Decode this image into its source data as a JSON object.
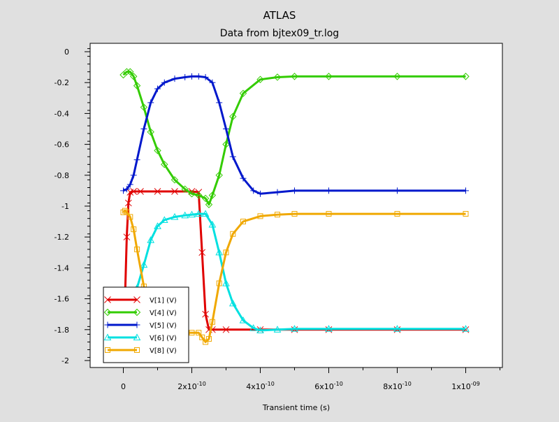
{
  "chart_data": {
    "type": "line",
    "title": "ATLAS",
    "subtitle": "Data from bjtex09_tr.log",
    "xlabel": "Transient time (s)",
    "ylabel": "",
    "xlim": [
      -2.4e-10,
      1.1e-09
    ],
    "ylim": [
      -2.05,
      0.03
    ],
    "grid": false,
    "legend_position": "bottom-left",
    "x_ticks": [
      {
        "value": 0,
        "base": "0",
        "exp": ""
      },
      {
        "value": 2e-10,
        "base": "2x10",
        "exp": "-10"
      },
      {
        "value": 4e-10,
        "base": "4x10",
        "exp": "-10"
      },
      {
        "value": 6e-10,
        "base": "6x10",
        "exp": "-10"
      },
      {
        "value": 8e-10,
        "base": "8x10",
        "exp": "-10"
      },
      {
        "value": 1e-09,
        "base": "1x10",
        "exp": "-09"
      }
    ],
    "y_ticks": [
      {
        "value": 0,
        "label": "0"
      },
      {
        "value": -0.2,
        "label": "-0.2"
      },
      {
        "value": -0.4,
        "label": "-0.4"
      },
      {
        "value": -0.6,
        "label": "-0.6"
      },
      {
        "value": -0.8,
        "label": "-0.8"
      },
      {
        "value": -1,
        "label": "-1"
      },
      {
        "value": -1.2,
        "label": "-1.2"
      },
      {
        "value": -1.4,
        "label": "-1.4"
      },
      {
        "value": -1.6,
        "label": "-1.6"
      },
      {
        "value": -1.8,
        "label": "-1.8"
      },
      {
        "value": -2,
        "label": "-2"
      }
    ],
    "series": [
      {
        "name": "V[1] (V)",
        "color": "#e00000",
        "marker": "x",
        "x": [
          0,
          5e-12,
          1e-11,
          1.5e-11,
          2e-11,
          3e-11,
          5e-11,
          1e-10,
          1.5e-10,
          2e-10,
          2.2e-10,
          2.3e-10,
          2.4e-10,
          2.5e-10,
          2.6e-10,
          3e-10,
          4e-10,
          5e-10,
          6e-10,
          8e-10,
          1e-09
        ],
        "y": [
          -1.82,
          -1.6,
          -1.2,
          -0.98,
          -0.91,
          -0.905,
          -0.905,
          -0.905,
          -0.905,
          -0.905,
          -0.91,
          -1.3,
          -1.7,
          -1.8,
          -1.8,
          -1.8,
          -1.8,
          -1.8,
          -1.8,
          -1.8,
          -1.8
        ]
      },
      {
        "name": "V[4] (V)",
        "color": "#33cc00",
        "marker": "diamond",
        "x": [
          0,
          1e-11,
          2e-11,
          3e-11,
          4e-11,
          6e-11,
          8e-11,
          1e-10,
          1.2e-10,
          1.5e-10,
          1.8e-10,
          2e-10,
          2.2e-10,
          2.4e-10,
          2.5e-10,
          2.6e-10,
          2.8e-10,
          3e-10,
          3.2e-10,
          3.5e-10,
          4e-10,
          4.5e-10,
          5e-10,
          6e-10,
          8e-10,
          1e-09
        ],
        "y": [
          -0.15,
          -0.13,
          -0.13,
          -0.16,
          -0.22,
          -0.36,
          -0.52,
          -0.64,
          -0.73,
          -0.83,
          -0.89,
          -0.92,
          -0.93,
          -0.95,
          -0.99,
          -0.93,
          -0.8,
          -0.6,
          -0.42,
          -0.27,
          -0.18,
          -0.165,
          -0.16,
          -0.16,
          -0.16,
          -0.16
        ]
      },
      {
        "name": "V[5] (V)",
        "color": "#0018cc",
        "marker": "plus",
        "x": [
          0,
          1e-11,
          2e-11,
          3e-11,
          4e-11,
          6e-11,
          8e-11,
          1e-10,
          1.2e-10,
          1.5e-10,
          1.8e-10,
          2e-10,
          2.2e-10,
          2.4e-10,
          2.6e-10,
          2.8e-10,
          3e-10,
          3.2e-10,
          3.5e-10,
          3.8e-10,
          4e-10,
          4.5e-10,
          5e-10,
          6e-10,
          8e-10,
          1e-09
        ],
        "y": [
          -0.9,
          -0.89,
          -0.86,
          -0.8,
          -0.7,
          -0.5,
          -0.33,
          -0.24,
          -0.2,
          -0.175,
          -0.165,
          -0.16,
          -0.16,
          -0.165,
          -0.2,
          -0.33,
          -0.5,
          -0.68,
          -0.82,
          -0.9,
          -0.92,
          -0.91,
          -0.9,
          -0.9,
          -0.9,
          -0.9
        ]
      },
      {
        "name": "V[6] (V)",
        "color": "#00e0e0",
        "marker": "triangle",
        "x": [
          2e-11,
          3e-11,
          4e-11,
          6e-11,
          8e-11,
          1e-10,
          1.2e-10,
          1.5e-10,
          1.8e-10,
          2e-10,
          2.2e-10,
          2.4e-10,
          2.6e-10,
          2.8e-10,
          3e-10,
          3.2e-10,
          3.5e-10,
          3.8e-10,
          4e-10,
          4.5e-10,
          5e-10,
          6e-10,
          8e-10,
          1e-09
        ],
        "y": [
          -1.68,
          -1.62,
          -1.53,
          -1.38,
          -1.22,
          -1.13,
          -1.09,
          -1.07,
          -1.06,
          -1.055,
          -1.05,
          -1.05,
          -1.12,
          -1.3,
          -1.5,
          -1.63,
          -1.74,
          -1.79,
          -1.805,
          -1.8,
          -1.795,
          -1.795,
          -1.795,
          -1.795
        ]
      },
      {
        "name": "V[8] (V)",
        "color": "#f0a800",
        "marker": "square",
        "x": [
          0,
          5e-12,
          1e-11,
          2e-11,
          3e-11,
          4e-11,
          6e-11,
          8e-11,
          1e-10,
          1.2e-10,
          1.5e-10,
          1.8e-10,
          2e-10,
          2.2e-10,
          2.3e-10,
          2.4e-10,
          2.5e-10,
          2.6e-10,
          2.8e-10,
          3e-10,
          3.2e-10,
          3.5e-10,
          4e-10,
          4.5e-10,
          5e-10,
          6e-10,
          8e-10,
          1e-09
        ],
        "y": [
          -1.04,
          -1.03,
          -1.04,
          -1.07,
          -1.15,
          -1.28,
          -1.52,
          -1.68,
          -1.76,
          -1.8,
          -1.815,
          -1.82,
          -1.82,
          -1.82,
          -1.85,
          -1.88,
          -1.86,
          -1.75,
          -1.5,
          -1.3,
          -1.18,
          -1.1,
          -1.065,
          -1.055,
          -1.05,
          -1.05,
          -1.05,
          -1.05
        ]
      }
    ]
  }
}
